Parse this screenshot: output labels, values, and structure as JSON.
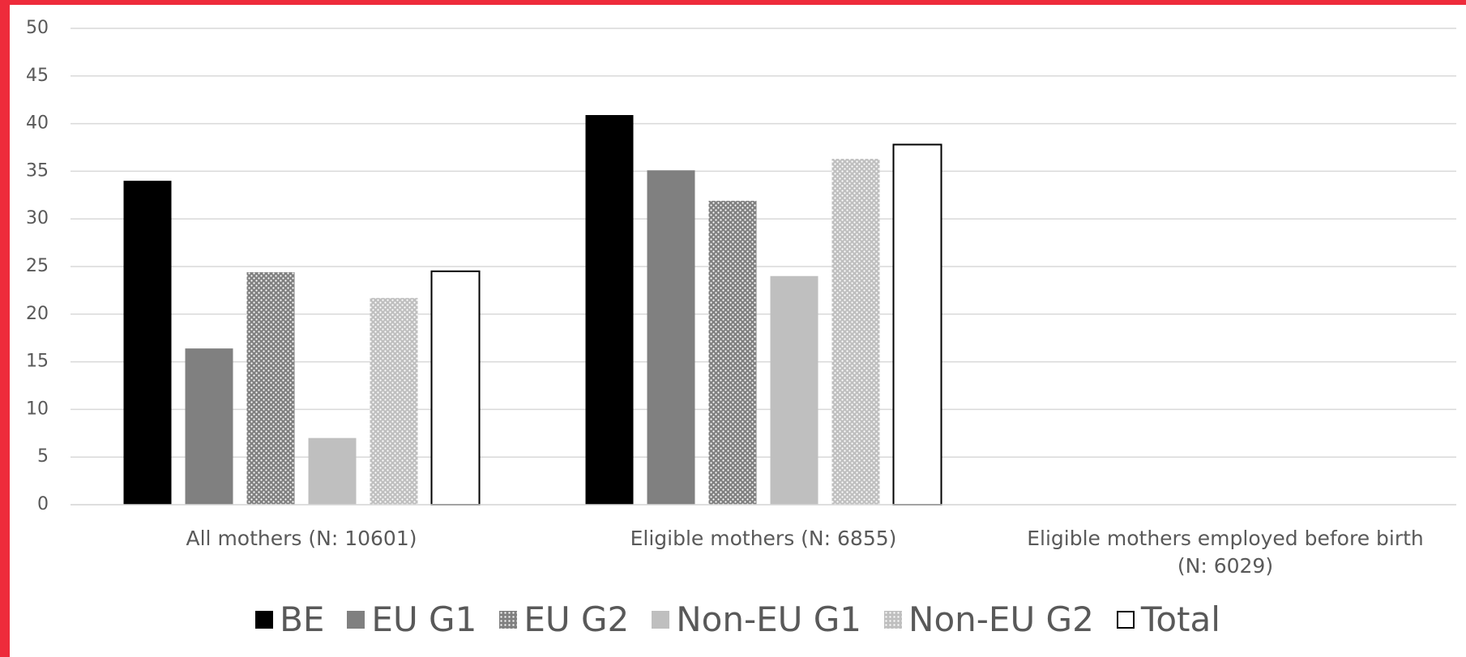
{
  "chart_data": {
    "type": "bar",
    "categories": [
      "All mothers (N: 10601)",
      "Eligible mothers (N: 6855)",
      "Eligible mothers employed before birth (N: 6029)"
    ],
    "series": [
      {
        "name": "BE",
        "color": "#000000",
        "values": [
          34,
          40.9,
          null
        ]
      },
      {
        "name": "EU G1",
        "color": "#808080",
        "values": [
          16.4,
          35.1,
          null
        ]
      },
      {
        "name": "EU G2",
        "color": "#808080",
        "pattern": "dots",
        "values": [
          24.4,
          31.9,
          null
        ]
      },
      {
        "name": "Non-EU G1",
        "color": "#bfbfbf",
        "values": [
          7,
          24,
          null
        ]
      },
      {
        "name": "Non-EU G2",
        "color": "#bfbfbf",
        "pattern": "dots",
        "values": [
          21.7,
          36.3,
          null
        ]
      },
      {
        "name": "Total",
        "color": "#ffffff",
        "outline": "#000000",
        "values": [
          24.5,
          37.8,
          null
        ]
      }
    ],
    "ylim": [
      0,
      50
    ],
    "yticks": [
      0,
      5,
      10,
      15,
      20,
      25,
      30,
      35,
      40,
      45,
      50
    ],
    "grid": true,
    "legend": "bottom"
  }
}
